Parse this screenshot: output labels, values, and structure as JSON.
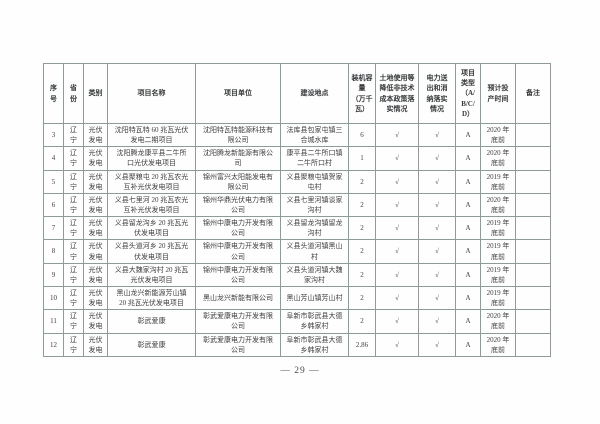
{
  "page": {
    "number_display": "— 29 —"
  },
  "table": {
    "columns": [
      {
        "key": "no",
        "label": "序\n号"
      },
      {
        "key": "province",
        "label": "省\n份"
      },
      {
        "key": "category",
        "label": "类别"
      },
      {
        "key": "project_name",
        "label": "项目名称"
      },
      {
        "key": "project_unit",
        "label": "项目单位"
      },
      {
        "key": "location",
        "label": "建设地点"
      },
      {
        "key": "capacity",
        "label": "装机容\n量\n（万千\n瓦）"
      },
      {
        "key": "land_policy",
        "label": "土地使用等\n降低非技术\n成本政策落\n实情况"
      },
      {
        "key": "power_policy",
        "label": "电力送\n出和消\n纳落实\n情况"
      },
      {
        "key": "project_type",
        "label": "项目\n类型\n（A/\nB/C/\nD）"
      },
      {
        "key": "production_time",
        "label": "预计投\n产时间"
      },
      {
        "key": "remark",
        "label": "备注"
      }
    ],
    "rows": [
      {
        "no": "3",
        "province": "辽\n宁",
        "category": "光伏\n发电",
        "project_name": "沈阳特瓦特 60 兆瓦光伏\n发电二期项目",
        "project_unit": "沈阳特瓦特能源科技有\n限公司",
        "location": "法库县包家屯镇三\n合城水库",
        "capacity": "6",
        "land_policy": "√",
        "power_policy": "√",
        "project_type": "A",
        "production_time": "2020 年\n底前",
        "remark": ""
      },
      {
        "no": "4",
        "province": "辽\n宁",
        "category": "光伏\n发电",
        "project_name": "沈阳腾龙康平县二牛所\n口光伏发电项目",
        "project_unit": "沈阳腾龙新能源有限公\n司",
        "location": "康平县二牛所口镇\n二牛所口村",
        "capacity": "1",
        "land_policy": "√",
        "power_policy": "√",
        "project_type": "A",
        "production_time": "2020 年\n底前",
        "remark": ""
      },
      {
        "no": "5",
        "province": "辽\n宁",
        "category": "光伏\n发电",
        "project_name": "义县聚粮屯 20 兆瓦农光\n互补光伏发电项目",
        "project_unit": "锦州富兴太阳能发电有\n限公司",
        "location": "义县聚粮屯镇贺家\n屯村",
        "capacity": "2",
        "land_policy": "√",
        "power_policy": "√",
        "project_type": "A",
        "production_time": "2019 年\n底前",
        "remark": ""
      },
      {
        "no": "6",
        "province": "辽\n宁",
        "category": "光伏\n发电",
        "project_name": "义县七里河 20 兆瓦农光\n互补光伏发电项目",
        "project_unit": "锦州华鼎光伏电力有限\n公司",
        "location": "义县七里河镇谈家\n沟村",
        "capacity": "2",
        "land_policy": "√",
        "power_policy": "√",
        "project_type": "A",
        "production_time": "2020 年\n底前",
        "remark": ""
      },
      {
        "no": "7",
        "province": "辽\n宁",
        "category": "光伏\n发电",
        "project_name": "义县留龙沟乡 20 兆瓦光\n伏发电项目",
        "project_unit": "锦州中康电力开发有限\n公司",
        "location": "义县留龙沟镇留龙\n沟村",
        "capacity": "2",
        "land_policy": "√",
        "power_policy": "√",
        "project_type": "A",
        "production_time": "2019 年\n底前",
        "remark": ""
      },
      {
        "no": "8",
        "province": "辽\n宁",
        "category": "光伏\n发电",
        "project_name": "义县头道河乡 20 兆瓦光\n伏发电项目",
        "project_unit": "锦州中康电力开发有限\n公司",
        "location": "义县头道河镇黑山\n村",
        "capacity": "2",
        "land_policy": "√",
        "power_policy": "√",
        "project_type": "A",
        "production_time": "2019 年\n底前",
        "remark": ""
      },
      {
        "no": "9",
        "province": "辽\n宁",
        "category": "光伏\n发电",
        "project_name": "义县大魏家沟村 20 兆瓦\n光伏发电项目",
        "project_unit": "锦州中康电力开发有限\n公司",
        "location": "义县头道河镇大魏\n家沟村",
        "capacity": "2",
        "land_policy": "√",
        "power_policy": "√",
        "project_type": "A",
        "production_time": "2019 年\n底前",
        "remark": ""
      },
      {
        "no": "10",
        "province": "辽\n宁",
        "category": "光伏\n发电",
        "project_name": "黑山龙兴新能源芳山镇\n20 兆瓦光伏发电项目",
        "project_unit": "黑山龙兴新能有限公司",
        "location": "黑山芳山镇芳山村",
        "capacity": "2",
        "land_policy": "√",
        "power_policy": "√",
        "project_type": "A",
        "production_time": "2019 年\n底前",
        "remark": ""
      },
      {
        "no": "11",
        "province": "辽\n宁",
        "category": "光伏\n发电",
        "project_name": "彰武爱康",
        "project_unit": "彰武爱康电力开发有限\n公司",
        "location": "阜新市彰武县大德\n乡韩家村",
        "capacity": "2",
        "land_policy": "√",
        "power_policy": "√",
        "project_type": "A",
        "production_time": "2020 年\n底前",
        "remark": ""
      },
      {
        "no": "12",
        "province": "辽\n宁",
        "category": "光伏\n发电",
        "project_name": "彰武爱康",
        "project_unit": "彰武爱康电力开发有限\n公司",
        "location": "阜新市彰武县大德\n乡韩家村",
        "capacity": "2.86",
        "land_policy": "√",
        "power_policy": "√",
        "project_type": "A",
        "production_time": "2020 年\n底前",
        "remark": ""
      }
    ]
  }
}
